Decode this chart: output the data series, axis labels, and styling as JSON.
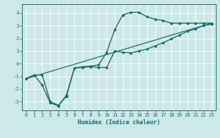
{
  "xlabel": "Humidex (Indice chaleur)",
  "xlim": [
    -0.5,
    23.5
  ],
  "ylim": [
    -3.7,
    4.7
  ],
  "xticks": [
    0,
    1,
    2,
    3,
    4,
    5,
    6,
    7,
    8,
    9,
    10,
    11,
    12,
    13,
    14,
    15,
    16,
    17,
    18,
    19,
    20,
    21,
    22,
    23
  ],
  "yticks": [
    -3,
    -2,
    -1,
    0,
    1,
    2,
    3,
    4
  ],
  "bg_color": "#cce8e8",
  "line_color": "#1a6b6b",
  "grid_color": "#ffffff",
  "lines": [
    {
      "x": [
        0,
        1,
        2,
        3,
        4,
        5,
        6,
        7,
        8,
        9,
        10,
        11,
        12,
        13,
        14,
        15,
        16,
        17,
        18,
        19,
        20,
        21,
        22,
        23
      ],
      "y": [
        -1.2,
        -0.9,
        -0.9,
        -3.0,
        -3.3,
        -2.6,
        -0.35,
        -0.25,
        -0.2,
        -0.1,
        0.9,
        2.7,
        3.85,
        4.05,
        4.05,
        3.7,
        3.5,
        3.4,
        3.2,
        3.2,
        3.2,
        3.2,
        3.2,
        3.2
      ],
      "marker": "D",
      "markersize": 2.0,
      "linewidth": 1.0,
      "has_marker": true
    },
    {
      "x": [
        0,
        1,
        2,
        3,
        4,
        5,
        6,
        7,
        8,
        9,
        10,
        11,
        12,
        13,
        14,
        15,
        16,
        17,
        18,
        19,
        20,
        21,
        22,
        23
      ],
      "y": [
        -1.2,
        -0.9,
        -1.7,
        -3.1,
        -3.35,
        -2.5,
        -0.35,
        -0.3,
        -0.25,
        -0.3,
        -0.3,
        1.0,
        0.9,
        0.85,
        1.0,
        1.15,
        1.4,
        1.65,
        1.95,
        2.25,
        2.55,
        2.75,
        3.0,
        3.1
      ],
      "marker": "D",
      "markersize": 2.0,
      "linewidth": 1.0,
      "has_marker": true
    },
    {
      "x": [
        0,
        23
      ],
      "y": [
        -1.2,
        3.2
      ],
      "marker": null,
      "markersize": 0,
      "linewidth": 0.9,
      "has_marker": false
    }
  ]
}
